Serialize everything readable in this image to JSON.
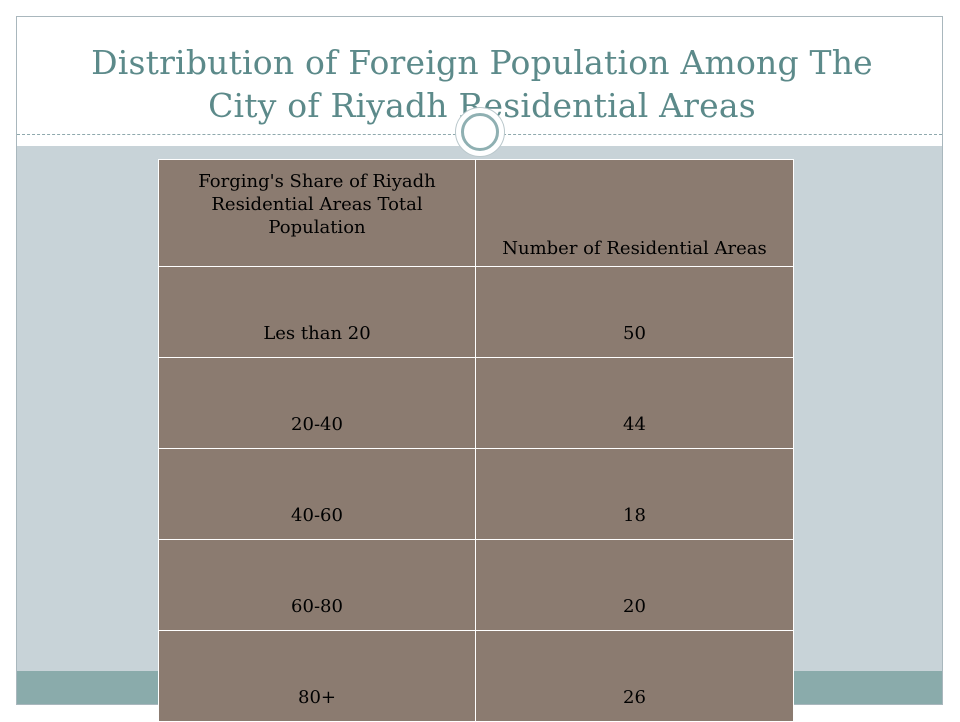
{
  "slide": {
    "title": "Distribution of Foreign Population Among The City of Riyadh  Residential Areas"
  },
  "table": {
    "headers": [
      "Forging's Share of Riyadh Residential Areas Total Population",
      "Number of Residential Areas"
    ],
    "rows": [
      [
        "Les than 20",
        "50"
      ],
      [
        "20-40",
        "44"
      ],
      [
        "40-60",
        "18"
      ],
      [
        "60-80",
        "20"
      ],
      [
        "80+",
        "26"
      ]
    ]
  },
  "colors": {
    "title_text": "#5c8a8a",
    "content_background": "#c8d3d8",
    "footer_band": "#8aabab",
    "table_fill": "#8b7b70"
  },
  "decoration": {
    "title_emblem": "ring-icon"
  }
}
